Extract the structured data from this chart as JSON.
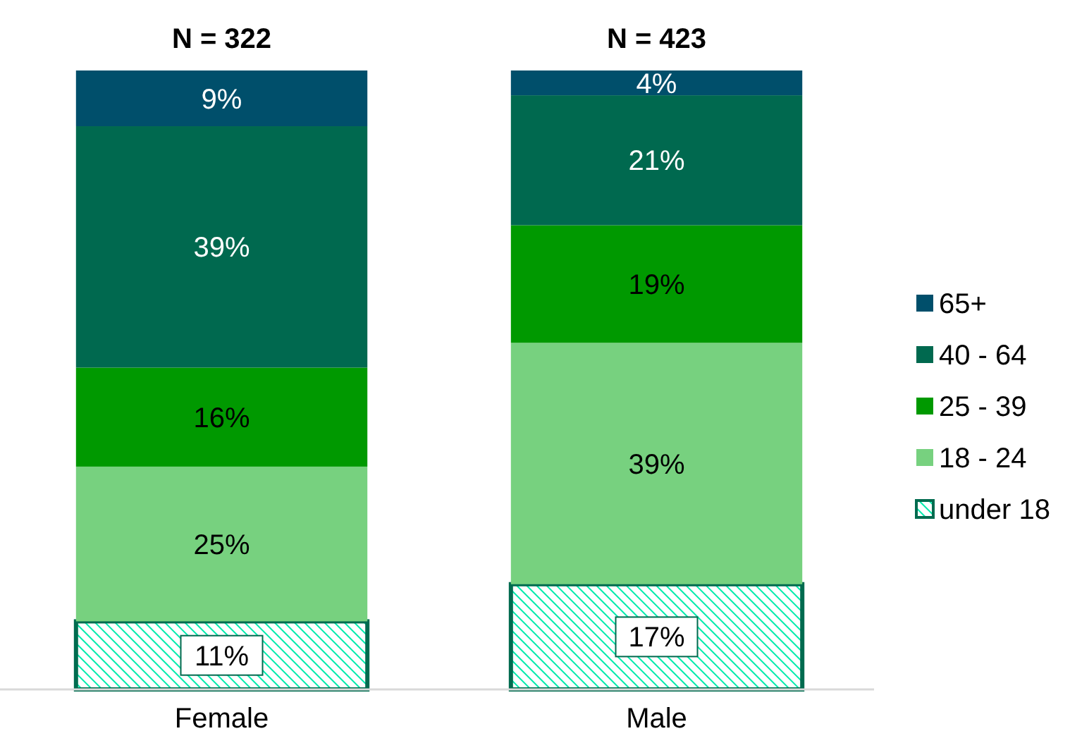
{
  "chart_data": {
    "type": "bar",
    "stacked": true,
    "categories": [
      "Female",
      "Male"
    ],
    "ylim": [
      0,
      100
    ],
    "tick_labels": "x",
    "legend": "right",
    "series": [
      {
        "name": "under 18",
        "color": "#006b4f",
        "values": [
          11,
          17
        ],
        "value_labels": [
          "11%",
          "17%"
        ]
      },
      {
        "name": "18 - 24",
        "color": "#77d17f",
        "values": [
          25,
          39
        ],
        "value_labels": [
          "25%",
          "39%"
        ]
      },
      {
        "name": "25 - 39",
        "color": "#009900",
        "values": [
          16,
          19
        ],
        "value_labels": [
          "16%",
          "19%"
        ]
      },
      {
        "name": "40 - 64",
        "color": "#00694f",
        "values": [
          39,
          21
        ],
        "value_labels": [
          "39%",
          "21%"
        ]
      },
      {
        "name": "65+",
        "color": "#004f6b",
        "values": [
          9,
          4
        ],
        "value_labels": [
          "9%",
          "4%"
        ]
      }
    ],
    "annotations": [
      {
        "text": "N = 322",
        "x": "Female",
        "y": 100
      },
      {
        "text": "N = 423",
        "x": "Male",
        "y": 100
      }
    ]
  }
}
